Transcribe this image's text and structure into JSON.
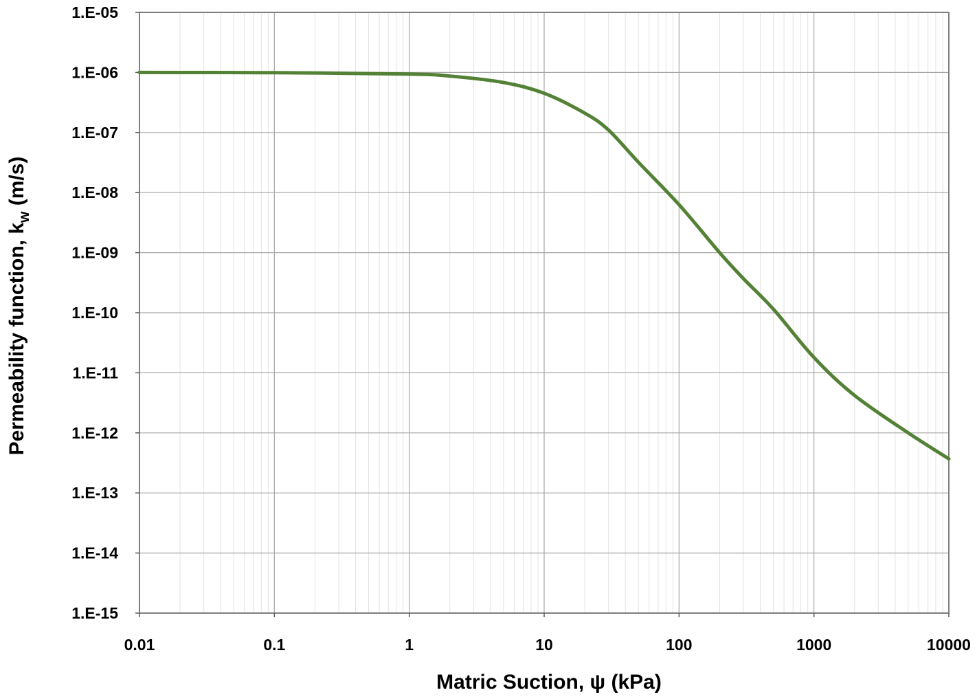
{
  "chart_data": {
    "type": "line",
    "xscale": "log",
    "yscale": "log",
    "xlim": [
      0.01,
      10000
    ],
    "ylim": [
      1e-15,
      1e-05
    ],
    "grid": true,
    "minor_grid": true,
    "xlabel": "Matric Suction, ψ (kPa)",
    "ylabel": {
      "main": "Permeability function, k",
      "subscript": "w",
      "suffix": " (m/s)"
    },
    "x_tick_labels": [
      "0.01",
      "0.1",
      "1",
      "10",
      "100",
      "1000",
      "10000"
    ],
    "y_tick_labels": [
      "1.E-05",
      "1.E-06",
      "1.E-07",
      "1.E-08",
      "1.E-09",
      "1.E-10",
      "1.E-11",
      "1.E-12",
      "1.E-13",
      "1.E-14",
      "1.E-15"
    ],
    "series": [
      {
        "color": "#538135",
        "x": [
          0.01,
          0.1,
          1,
          2,
          5,
          10,
          20,
          30,
          50,
          100,
          200,
          300,
          500,
          1000,
          2000,
          5000,
          10000
        ],
        "y": [
          1e-06,
          9.9e-07,
          9.4e-07,
          8.7e-07,
          6.8e-07,
          4.5e-07,
          2.1e-07,
          1.1e-07,
          3.2e-08,
          6.3e-09,
          1e-09,
          3.7e-10,
          1.15e-10,
          1.8e-11,
          4.2e-12,
          1e-12,
          3.7e-13
        ]
      }
    ]
  }
}
